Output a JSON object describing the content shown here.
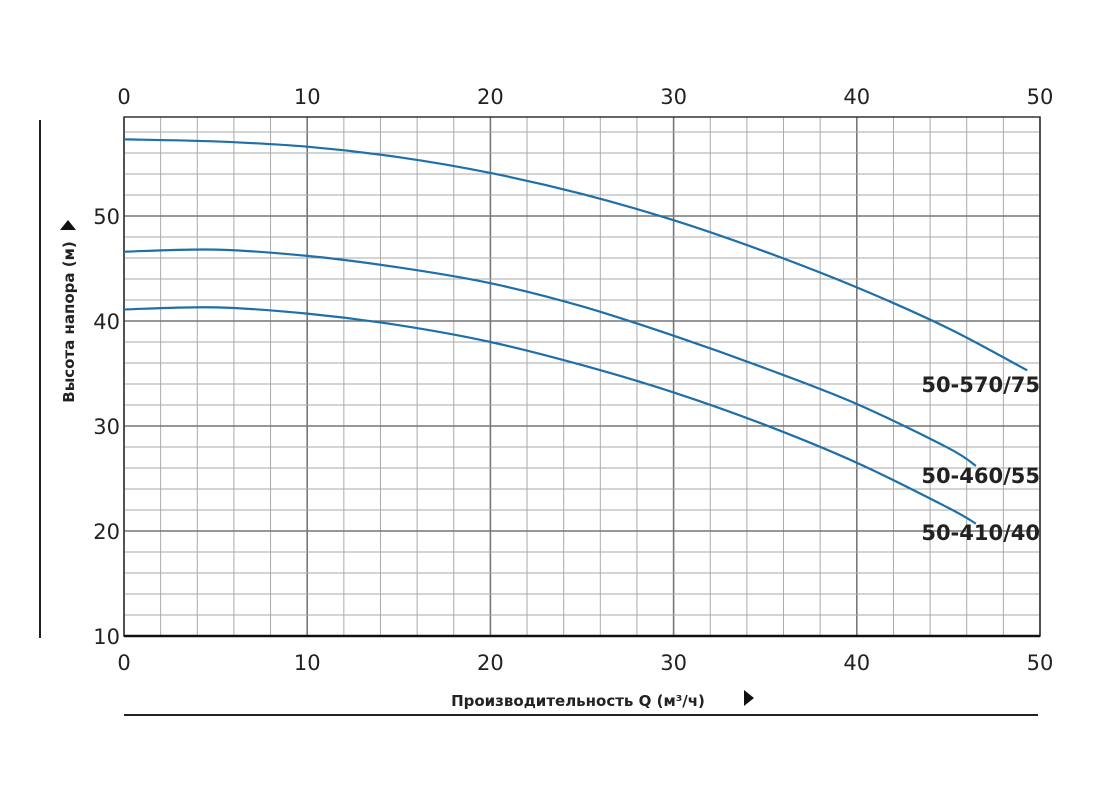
{
  "chart_data": {
    "type": "line",
    "xlabel": "Производительность Q (м³/ч)",
    "ylabel": "Высота напора (м)",
    "xlim": [
      0,
      50
    ],
    "ylim": [
      10,
      60
    ],
    "x_ticks": [
      0,
      10,
      20,
      30,
      40,
      50
    ],
    "y_ticks": [
      10,
      20,
      30,
      40,
      50
    ],
    "x_ticks_top": true,
    "grid": true,
    "grid_minor_step_x": 2,
    "grid_minor_step_y": 2,
    "line_color": "#1f6fa8",
    "series": [
      {
        "name": "50-570/75",
        "x": [
          0,
          5,
          10,
          15,
          20,
          25,
          30,
          35,
          40,
          45,
          49.3
        ],
        "y": [
          57.3,
          57.1,
          56.6,
          55.6,
          54.1,
          52.1,
          49.6,
          46.6,
          43.2,
          39.3,
          35.3
        ]
      },
      {
        "name": "50-460/55",
        "x": [
          0,
          5,
          10,
          15,
          20,
          25,
          30,
          35,
          40,
          45,
          46.5
        ],
        "y": [
          46.6,
          46.8,
          46.2,
          45.1,
          43.6,
          41.4,
          38.6,
          35.5,
          32.1,
          27.9,
          26.2
        ]
      },
      {
        "name": "50-410/40",
        "x": [
          0,
          5,
          10,
          15,
          20,
          25,
          30,
          35,
          40,
          45,
          46.5
        ],
        "y": [
          41.1,
          41.3,
          40.7,
          39.6,
          38.0,
          35.8,
          33.2,
          30.1,
          26.5,
          22.2,
          20.7
        ]
      }
    ]
  }
}
